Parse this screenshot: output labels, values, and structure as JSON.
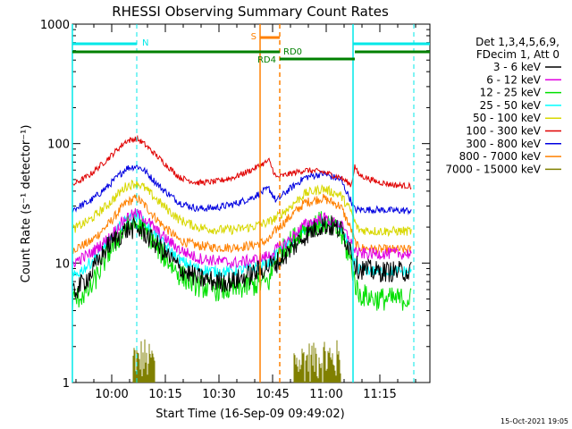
{
  "chart_data": {
    "type": "line",
    "title": "RHESSI Observing Summary Count Rates",
    "xlabel": "Start Time (16-Sep-09 09:49:02)",
    "ylabel": "Count Rate (s⁻¹ detector⁻¹)",
    "yscale": "log",
    "ylim": [
      1,
      1000
    ],
    "xlim_minutes_after_0949": [
      0,
      100
    ],
    "x_tick_labels": [
      "10:00",
      "10:15",
      "10:30",
      "10:45",
      "11:00",
      "11:15"
    ],
    "x_tick_minutes": [
      11,
      26,
      41,
      56,
      71,
      86
    ],
    "y_tick_labels": [
      "1",
      "10",
      "100",
      "1000"
    ],
    "y_tick_values": [
      1,
      10,
      100,
      1000
    ],
    "legend": {
      "position": "right",
      "header": [
        "Det 1,3,4,5,6,9,",
        "FDecim 1, Att 0"
      ],
      "entries": [
        {
          "label": "3 - 6 keV",
          "color": "#000000"
        },
        {
          "label": "6 - 12 keV",
          "color": "#e000e0"
        },
        {
          "label": "12 - 25 keV",
          "color": "#00e000"
        },
        {
          "label": "25 - 50 keV",
          "color": "#00ffff"
        },
        {
          "label": "50 - 100 keV",
          "color": "#d8d800"
        },
        {
          "label": "100 - 300 keV",
          "color": "#e00000"
        },
        {
          "label": "300 - 800 keV",
          "color": "#0000e0"
        },
        {
          "label": "800 - 7000 keV",
          "color": "#ff8000"
        },
        {
          "label": "7000 - 15000 keV",
          "color": "#808000"
        }
      ]
    },
    "annotations": [
      {
        "label": "N",
        "kind": "night",
        "color": "#00e8e8"
      },
      {
        "label": "S",
        "kind": "saa",
        "color": "#ff8000"
      },
      {
        "label": "RD0",
        "kind": "decimation",
        "color": "#008000"
      },
      {
        "label": "RD4",
        "kind": "decimation",
        "color": "#008000"
      }
    ],
    "series_x_minutes": [
      0,
      5,
      10,
      15,
      18,
      20,
      25,
      30,
      35,
      40,
      45,
      50,
      55,
      57,
      60,
      65,
      70,
      75,
      78,
      79,
      80,
      85,
      90,
      95
    ],
    "series": [
      {
        "name": "3 - 6 keV",
        "color": "#000000",
        "values": [
          5.5,
          8,
          14,
          19,
          19.5,
          18,
          13,
          9,
          7.5,
          7,
          7,
          8,
          9.5,
          10,
          12,
          17,
          21,
          19,
          13,
          10,
          9,
          8.5,
          8.5,
          8.5
        ]
      },
      {
        "name": "6 - 12 keV",
        "color": "#e000e0",
        "values": [
          10,
          12,
          16,
          24,
          26,
          24,
          17,
          13,
          11,
          10.5,
          10,
          10.5,
          11.5,
          13,
          15,
          21,
          24,
          21,
          15,
          13,
          12,
          12,
          12,
          12
        ]
      },
      {
        "name": "12 - 25 keV",
        "color": "#00e000",
        "values": [
          4.8,
          6,
          12,
          20,
          21,
          19,
          12,
          8,
          6.5,
          6,
          6,
          6.5,
          7,
          11,
          14,
          20,
          22,
          18,
          10,
          7,
          5.5,
          5,
          5,
          5
        ]
      },
      {
        "name": "25 - 50 keV",
        "color": "#00ffff",
        "values": [
          7.5,
          10,
          15,
          23,
          24,
          22,
          15,
          10.5,
          9,
          8.5,
          8.5,
          9,
          10,
          12,
          14,
          19,
          22,
          20,
          12,
          10,
          9,
          8.5,
          8.5,
          8.5
        ]
      },
      {
        "name": "50 - 100 keV",
        "color": "#d8d800",
        "values": [
          19,
          23,
          31,
          44,
          47,
          43,
          31,
          23,
          20,
          19,
          19,
          20,
          22,
          24,
          28,
          38,
          42,
          37,
          27,
          22,
          19,
          18.5,
          18.5,
          18.5
        ]
      },
      {
        "name": "100 - 300 keV",
        "color": "#e00000",
        "values": [
          45,
          55,
          75,
          105,
          110,
          100,
          72,
          52,
          47,
          48,
          52,
          60,
          72,
          52,
          55,
          60,
          58,
          52,
          45,
          65,
          55,
          48,
          45,
          44
        ]
      },
      {
        "name": "300 - 800 keV",
        "color": "#0000e0",
        "values": [
          28,
          33,
          44,
          62,
          65,
          60,
          42,
          32,
          28.5,
          29,
          31,
          35,
          42,
          33,
          40,
          52,
          56,
          50,
          33,
          28,
          28,
          28,
          27.5,
          27.5
        ]
      },
      {
        "name": "800 - 7000 keV",
        "color": "#ff8000",
        "values": [
          13,
          15,
          21,
          32,
          35,
          31,
          21,
          15.5,
          14,
          13.5,
          13.5,
          14,
          15.5,
          19,
          23,
          32,
          35,
          30,
          19,
          15,
          13.5,
          13,
          13,
          13
        ]
      }
    ],
    "bursts": [
      {
        "name": "7000 - 15000 keV",
        "color": "#808000",
        "ranges_minutes": [
          [
            17,
            23
          ],
          [
            62,
            75
          ]
        ],
        "level_range": [
          1,
          2.5
        ]
      }
    ]
  },
  "footer": {
    "timestamp": "15-Oct-2021 19:05"
  }
}
